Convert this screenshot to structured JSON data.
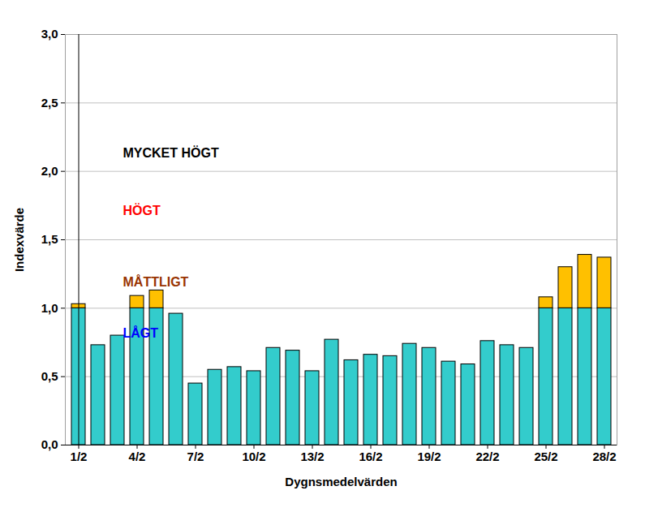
{
  "chart_data": {
    "type": "bar",
    "stacked": true,
    "grid": true,
    "x_label": "Dygnsmedelvärden",
    "y_label": "Indexvärde",
    "categories": [
      "1/2",
      null,
      null,
      "4/2",
      null,
      null,
      "7/2",
      null,
      null,
      "10/2",
      null,
      null,
      "13/2",
      null,
      null,
      "16/2",
      null,
      null,
      "19/2",
      null,
      null,
      "22/2",
      null,
      null,
      "25/2",
      null,
      null,
      "28/2"
    ],
    "series": [
      {
        "color": "#33cccc",
        "values": [
          1.0,
          0.73,
          0.8,
          1.0,
          1.0,
          0.96,
          0.45,
          0.55,
          0.57,
          0.54,
          0.71,
          0.69,
          0.54,
          0.77,
          0.62,
          0.66,
          0.65,
          0.74,
          0.71,
          0.61,
          0.59,
          0.76,
          0.73,
          0.71,
          1.0,
          1.0,
          1.0,
          1.0
        ]
      },
      {
        "color": "#ffc000",
        "values": [
          0.03,
          0,
          0,
          0.09,
          0.13,
          0,
          0,
          0,
          0,
          0,
          0,
          0,
          0,
          0,
          0,
          0,
          0,
          0,
          0,
          0,
          0,
          0,
          0,
          0,
          0.08,
          0.3,
          0.39,
          0.37
        ]
      }
    ],
    "ylim": [
      0,
      3
    ],
    "yticks": [
      {
        "value": 0,
        "label": "0,0"
      },
      {
        "value": 0.5,
        "label": "0,5"
      },
      {
        "value": 1,
        "label": "1,0"
      },
      {
        "value": 1.5,
        "label": "1,5"
      },
      {
        "value": 2,
        "label": "2,0"
      },
      {
        "value": 2.5,
        "label": "2,5"
      },
      {
        "value": 3,
        "label": "3,0"
      }
    ],
    "annotations": [
      {
        "text": "MYCKET HÖGT",
        "color": "#000000"
      },
      {
        "text": "HÖGT",
        "color": "#ff0000"
      },
      {
        "text": "MÅTTLIGT",
        "color": "#993300"
      },
      {
        "text": "LÅGT",
        "color": "#0000ff"
      }
    ]
  }
}
